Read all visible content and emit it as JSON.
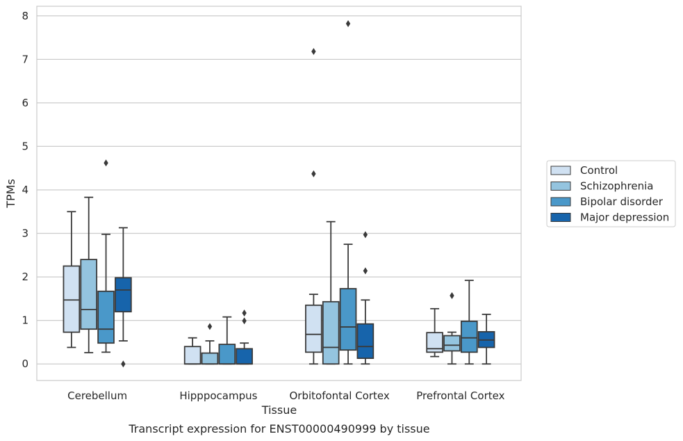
{
  "chart_data": {
    "type": "box",
    "title": "Transcript expression for ENST00000490999 by tissue",
    "xlabel": "Tissue",
    "ylabel": "TPMs",
    "ylim": [
      -0.38,
      8.22
    ],
    "yticks": [
      0,
      1,
      2,
      3,
      4,
      5,
      6,
      7,
      8
    ],
    "grid": "horizontal",
    "legend_position": "right",
    "categories": [
      "Cerebellum",
      "Hipppocampus",
      "Orbitofontal Cortex",
      "Prefrontal Cortex"
    ],
    "series": [
      {
        "name": "Control",
        "color": "#d0e1f2",
        "boxes": [
          {
            "whisker_low": 0.38,
            "q1": 0.73,
            "median": 1.47,
            "q3": 2.25,
            "whisker_high": 3.5,
            "outliers": []
          },
          {
            "whisker_low": 0.0,
            "q1": 0.0,
            "median": 0.0,
            "q3": 0.4,
            "whisker_high": 0.6,
            "outliers": []
          },
          {
            "whisker_low": 0.0,
            "q1": 0.27,
            "median": 0.68,
            "q3": 1.35,
            "whisker_high": 1.6,
            "outliers": [
              4.37,
              7.18
            ]
          },
          {
            "whisker_low": 0.17,
            "q1": 0.27,
            "median": 0.35,
            "q3": 0.72,
            "whisker_high": 1.27,
            "outliers": []
          }
        ]
      },
      {
        "name": "Schizophrenia",
        "color": "#94c4df",
        "boxes": [
          {
            "whisker_low": 0.26,
            "q1": 0.8,
            "median": 1.25,
            "q3": 2.4,
            "whisker_high": 3.83,
            "outliers": []
          },
          {
            "whisker_low": 0.0,
            "q1": 0.0,
            "median": 0.0,
            "q3": 0.25,
            "whisker_high": 0.53,
            "outliers": [
              0.86
            ]
          },
          {
            "whisker_low": 0.0,
            "q1": 0.0,
            "median": 0.38,
            "q3": 1.43,
            "whisker_high": 3.27,
            "outliers": []
          },
          {
            "whisker_low": 0.0,
            "q1": 0.3,
            "median": 0.43,
            "q3": 0.65,
            "whisker_high": 0.73,
            "outliers": [
              1.57
            ]
          }
        ]
      },
      {
        "name": "Bipolar disorder",
        "color": "#4a98c9",
        "boxes": [
          {
            "whisker_low": 0.27,
            "q1": 0.48,
            "median": 0.8,
            "q3": 1.67,
            "whisker_high": 2.98,
            "outliers": [
              4.62
            ]
          },
          {
            "whisker_low": 0.0,
            "q1": 0.0,
            "median": 0.0,
            "q3": 0.45,
            "whisker_high": 1.08,
            "outliers": []
          },
          {
            "whisker_low": 0.0,
            "q1": 0.32,
            "median": 0.85,
            "q3": 1.73,
            "whisker_high": 2.75,
            "outliers": [
              7.82
            ]
          },
          {
            "whisker_low": 0.0,
            "q1": 0.27,
            "median": 0.6,
            "q3": 0.98,
            "whisker_high": 1.92,
            "outliers": []
          }
        ]
      },
      {
        "name": "Major depression",
        "color": "#1764ab",
        "boxes": [
          {
            "whisker_low": 0.53,
            "q1": 1.2,
            "median": 1.7,
            "q3": 1.98,
            "whisker_high": 3.13,
            "outliers": [
              0.0
            ]
          },
          {
            "whisker_low": 0.0,
            "q1": 0.0,
            "median": 0.0,
            "q3": 0.35,
            "whisker_high": 0.48,
            "outliers": [
              0.99,
              1.17
            ]
          },
          {
            "whisker_low": 0.0,
            "q1": 0.13,
            "median": 0.4,
            "q3": 0.92,
            "whisker_high": 1.47,
            "outliers": [
              2.14,
              2.97
            ]
          },
          {
            "whisker_low": 0.0,
            "q1": 0.38,
            "median": 0.55,
            "q3": 0.74,
            "whisker_high": 1.14,
            "outliers": []
          }
        ]
      }
    ]
  }
}
